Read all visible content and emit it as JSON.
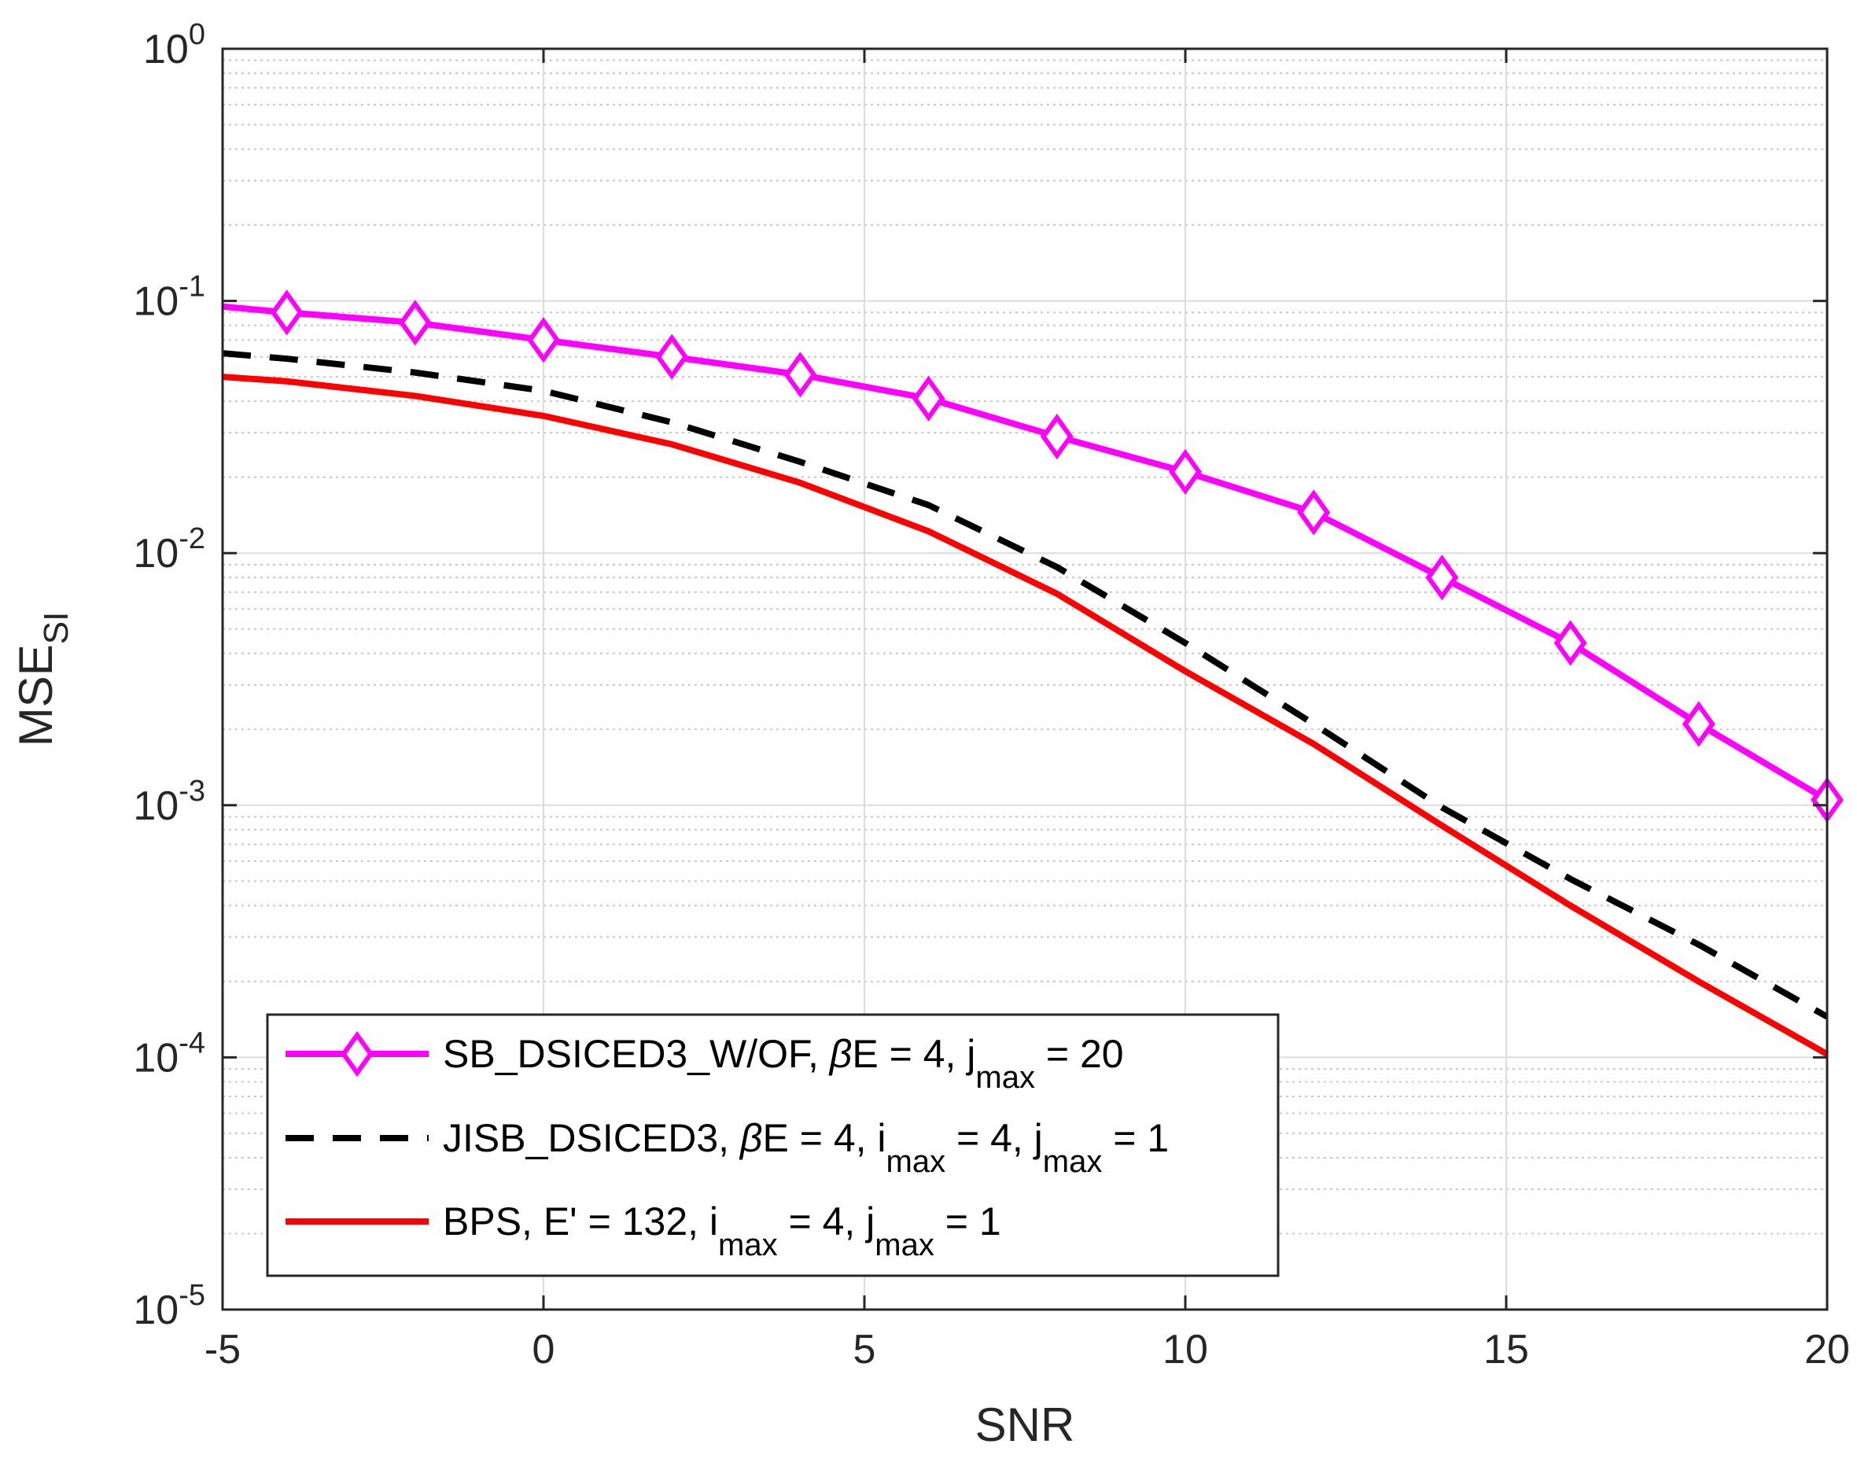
{
  "chart_data": {
    "type": "line",
    "title": "",
    "xlabel": "SNR",
    "ylabel": {
      "base": "MSE",
      "sub": "SI"
    },
    "xlim": [
      -5,
      20
    ],
    "ylim": [
      1e-05,
      1
    ],
    "yscale": "log",
    "grid": true,
    "minor_grid": true,
    "legend_position": "bottom-left",
    "x_ticks": [
      -5,
      0,
      5,
      10,
      15,
      20
    ],
    "x_tick_labels": [
      "-5",
      "0",
      "5",
      "10",
      "15",
      "20"
    ],
    "y_ticks": [
      {
        "value": 1e-05,
        "base": "10",
        "exp": "-5"
      },
      {
        "value": 0.0001,
        "base": "10",
        "exp": "-4"
      },
      {
        "value": 0.001,
        "base": "10",
        "exp": "-3"
      },
      {
        "value": 0.01,
        "base": "10",
        "exp": "-2"
      },
      {
        "value": 0.1,
        "base": "10",
        "exp": "-1"
      },
      {
        "value": 1,
        "base": "10",
        "exp": "0"
      }
    ],
    "series": [
      {
        "name": "SB_DSICED3_W/OF",
        "color": "#ff00ff",
        "style": "solid",
        "marker": "diamond",
        "legend_parts": [
          {
            "t": "SB_DSICED3_W/OF,  "
          },
          {
            "t": "β",
            "italic": true
          },
          {
            "t": "E = 4,  j"
          },
          {
            "t": "max",
            "sub": true
          },
          {
            "t": " = 20"
          }
        ],
        "x": [
          -5,
          -4,
          -2,
          0,
          2,
          4,
          6,
          8,
          10,
          12,
          14,
          16,
          18,
          20
        ],
        "values": [
          0.095,
          0.09,
          0.082,
          0.07,
          0.06,
          0.051,
          0.041,
          0.029,
          0.021,
          0.0145,
          0.008,
          0.0044,
          0.0021,
          0.00105
        ],
        "marker_x": [
          -4,
          -2,
          0,
          2,
          4,
          6,
          8,
          10,
          12,
          14,
          16,
          18,
          20
        ]
      },
      {
        "name": "JISB_DSICED3",
        "color": "#000000",
        "style": "dashed",
        "marker": "none",
        "legend_parts": [
          {
            "t": "JISB_DSICED3, "
          },
          {
            "t": "β",
            "italic": true
          },
          {
            "t": "E = 4, i"
          },
          {
            "t": "max",
            "sub": true
          },
          {
            "t": " = 4, j"
          },
          {
            "t": "max",
            "sub": true
          },
          {
            "t": " = 1"
          }
        ],
        "x": [
          -5,
          -4,
          -2,
          0,
          2,
          4,
          6,
          8,
          10,
          12,
          14,
          16,
          18,
          20
        ],
        "values": [
          0.062,
          0.059,
          0.052,
          0.044,
          0.033,
          0.023,
          0.0155,
          0.0088,
          0.0044,
          0.0021,
          0.00098,
          0.00051,
          0.00028,
          0.000145
        ]
      },
      {
        "name": "BPS",
        "color": "#ff0000",
        "style": "solid",
        "marker": "none",
        "legend_parts": [
          {
            "t": "BPS, E' = 132, i"
          },
          {
            "t": "max",
            "sub": true
          },
          {
            "t": " = 4, j"
          },
          {
            "t": "max",
            "sub": true
          },
          {
            "t": " = 1"
          }
        ],
        "x": [
          -5,
          -4,
          -2,
          0,
          2,
          4,
          6,
          8,
          10,
          12,
          14,
          16,
          18,
          20
        ],
        "values": [
          0.05,
          0.048,
          0.042,
          0.035,
          0.027,
          0.019,
          0.0122,
          0.0069,
          0.0034,
          0.00175,
          0.00083,
          0.0004,
          0.0002,
          0.000103
        ]
      }
    ]
  }
}
